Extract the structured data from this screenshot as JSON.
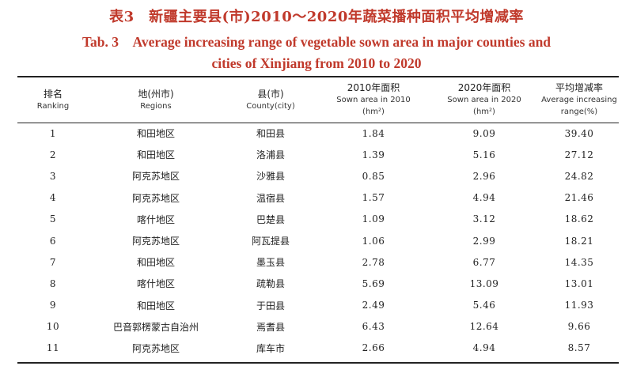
{
  "title_cn": "表3　新疆主要县(市)2010～2020年蔬菜播种面积平均增减率",
  "title_en_line1": "Tab. 3　Average increasing range of vegetable sown area in major counties and",
  "title_en_line2": "cities of Xinjiang from 2010 to 2020",
  "headers": [
    {
      "cn": "排名",
      "en": "Ranking",
      "en2": ""
    },
    {
      "cn": "地(州市)",
      "en": "Regions",
      "en2": ""
    },
    {
      "cn": "县(市)",
      "en": "County(city)",
      "en2": ""
    },
    {
      "cn": "2010年面积",
      "en": "Sown area in 2010",
      "en2": "(hm²)"
    },
    {
      "cn": "2020年面积",
      "en": "Sown area in 2020",
      "en2": "(hm²)"
    },
    {
      "cn": "平均增减率",
      "en": "Average increasing",
      "en2": "range(%)"
    }
  ],
  "rows": [
    [
      "1",
      "和田地区",
      "和田县",
      "1.84",
      "9.09",
      "39.40"
    ],
    [
      "2",
      "和田地区",
      "洛浦县",
      "1.39",
      "5.16",
      "27.12"
    ],
    [
      "3",
      "阿克苏地区",
      "沙雅县",
      "0.85",
      "2.96",
      "24.82"
    ],
    [
      "4",
      "阿克苏地区",
      "温宿县",
      "1.57",
      "4.94",
      "21.46"
    ],
    [
      "5",
      "喀什地区",
      "巴楚县",
      "1.09",
      "3.12",
      "18.62"
    ],
    [
      "6",
      "阿克苏地区",
      "阿瓦提县",
      "1.06",
      "2.99",
      "18.21"
    ],
    [
      "7",
      "和田地区",
      "墨玉县",
      "2.78",
      "6.77",
      "14.35"
    ],
    [
      "8",
      "喀什地区",
      "疏勒县",
      "5.69",
      "13.09",
      "13.01"
    ],
    [
      "9",
      "和田地区",
      "于田县",
      "2.49",
      "5.46",
      "11.93"
    ],
    [
      "10",
      "巴音郭楞蒙古自治州",
      "焉耆县",
      "6.43",
      "12.64",
      "9.66"
    ],
    [
      "11",
      "阿克苏地区",
      "库车市",
      "2.66",
      "4.94",
      "8.57"
    ]
  ]
}
